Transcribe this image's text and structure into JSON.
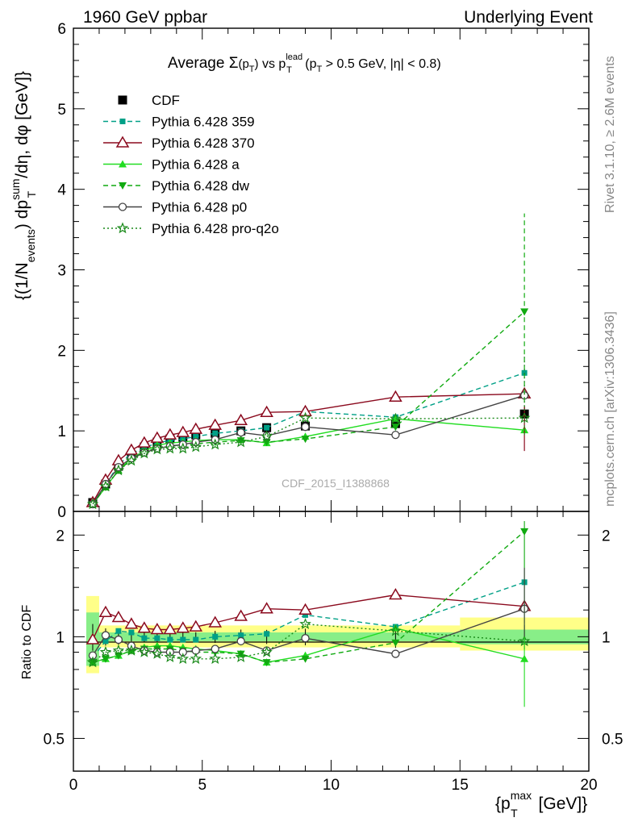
{
  "header": {
    "left": "1960 GeV ppbar",
    "right": "Underlying Event"
  },
  "side_labels": {
    "rivet": "Rivet 3.1.10, ≥ 2.6M events",
    "mcplots": "mcplots.cern.ch [arXiv:1306.3436]"
  },
  "watermark": "CDF_2015_I1388868",
  "chart_data": [
    {
      "type": "scatter",
      "title": "Average Σ(pT) vs pT^lead (pT > 0.5 GeV, |η| < 0.8)",
      "xlabel": "{pT^max [GeV]}",
      "ylabel": "{(1/N_events) dpT^sum/dη, dφ [GeV]}",
      "xlim": [
        0,
        20
      ],
      "ylim": [
        0,
        6
      ],
      "legend_position": "top-left",
      "x": [
        0.75,
        1.25,
        1.75,
        2.25,
        2.75,
        3.25,
        3.75,
        4.25,
        4.75,
        5.5,
        6.5,
        7.5,
        9.0,
        12.5,
        17.5
      ],
      "series": [
        {
          "name": "CDF",
          "color": "#000000",
          "marker": "square",
          "line": "none",
          "values": [
            0.11,
            0.34,
            0.56,
            0.69,
            0.8,
            0.86,
            0.9,
            0.92,
            0.95,
            0.97,
            1.0,
            1.04,
            1.06,
            1.09,
            1.21
          ],
          "errors": [
            0.01,
            0.02,
            0.03,
            0.03,
            0.03,
            0.03,
            0.03,
            0.03,
            0.03,
            0.04,
            0.05,
            0.05,
            0.06,
            0.08,
            0.1
          ]
        },
        {
          "name": "Pythia 6.428 359",
          "color": "#00a087",
          "marker": "square-small",
          "line": "dashed",
          "values": [
            0.1,
            0.33,
            0.58,
            0.72,
            0.79,
            0.85,
            0.88,
            0.9,
            0.93,
            0.97,
            1.0,
            1.04,
            1.24,
            1.17,
            1.72
          ]
        },
        {
          "name": "Pythia 6.428 370",
          "color": "#8b0a1e",
          "marker": "triangle-open",
          "line": "solid",
          "values": [
            0.11,
            0.39,
            0.63,
            0.76,
            0.85,
            0.91,
            0.95,
            0.98,
            1.02,
            1.07,
            1.13,
            1.23,
            1.24,
            1.42,
            1.46
          ]
        },
        {
          "name": "Pythia 6.428 a",
          "color": "#22dd22",
          "marker": "triangle",
          "line": "solid",
          "values": [
            0.09,
            0.3,
            0.51,
            0.66,
            0.75,
            0.82,
            0.85,
            0.86,
            0.88,
            0.89,
            0.89,
            0.85,
            0.93,
            1.15,
            1.01
          ]
        },
        {
          "name": "Pythia 6.428 dw",
          "color": "#11aa11",
          "marker": "triangle-down",
          "line": "dashed",
          "values": [
            0.09,
            0.3,
            0.51,
            0.64,
            0.74,
            0.79,
            0.82,
            0.82,
            0.84,
            0.86,
            0.88,
            0.86,
            0.9,
            1.05,
            2.48
          ]
        },
        {
          "name": "Pythia 6.428 p0",
          "color": "#444444",
          "marker": "circle-open",
          "line": "solid",
          "values": [
            0.09,
            0.34,
            0.55,
            0.66,
            0.73,
            0.78,
            0.81,
            0.83,
            0.86,
            0.89,
            0.98,
            0.94,
            1.05,
            0.95,
            1.44
          ]
        },
        {
          "name": "Pythia 6.428 pro-q2o",
          "color": "#1a8a1a",
          "marker": "star",
          "line": "dotted",
          "values": [
            0.09,
            0.31,
            0.51,
            0.63,
            0.72,
            0.77,
            0.78,
            0.78,
            0.8,
            0.83,
            0.86,
            0.93,
            1.16,
            1.15,
            1.16
          ]
        }
      ]
    },
    {
      "type": "scatter",
      "title": "",
      "xlabel": "{pT^max [GeV]}",
      "ylabel": "Ratio to CDF",
      "xlim": [
        0,
        20
      ],
      "ylim": [
        0.4,
        2.35
      ],
      "y_ticks": [
        "0.5",
        "1",
        "2"
      ],
      "x_ticks": [
        "0",
        "5",
        "10",
        "15",
        "20"
      ],
      "reference_line": 1,
      "bands": [
        {
          "x_range": [
            0.5,
            1.0
          ],
          "inner": [
            0.82,
            1.18
          ],
          "outer": [
            0.78,
            1.32
          ]
        },
        {
          "x_range": [
            1.0,
            15.0
          ],
          "inner": [
            0.97,
            1.03
          ],
          "outer": [
            0.93,
            1.08
          ]
        },
        {
          "x_range": [
            15.0,
            20.0
          ],
          "inner": [
            0.95,
            1.05
          ],
          "outer": [
            0.91,
            1.14
          ]
        }
      ],
      "x": [
        0.75,
        1.25,
        1.75,
        2.25,
        2.75,
        3.25,
        3.75,
        4.25,
        4.75,
        5.5,
        6.5,
        7.5,
        9.0,
        12.5,
        17.5
      ],
      "series": [
        {
          "name": "Pythia 6.428 359",
          "values": [
            0.87,
            0.97,
            1.04,
            1.03,
            0.99,
            0.99,
            0.98,
            0.98,
            0.98,
            1.0,
            1.01,
            1.02,
            1.16,
            1.07,
            1.45
          ]
        },
        {
          "name": "Pythia 6.428 370",
          "values": [
            0.98,
            1.18,
            1.14,
            1.09,
            1.06,
            1.05,
            1.05,
            1.06,
            1.07,
            1.1,
            1.15,
            1.21,
            1.2,
            1.33,
            1.23
          ]
        },
        {
          "name": "Pythia 6.428 a",
          "values": [
            0.84,
            0.86,
            0.88,
            0.91,
            0.93,
            0.94,
            0.94,
            0.93,
            0.92,
            0.91,
            0.89,
            0.84,
            0.88,
            1.06,
            0.86
          ]
        },
        {
          "name": "Pythia 6.428 dw",
          "values": [
            0.84,
            0.86,
            0.88,
            0.91,
            0.92,
            0.92,
            0.92,
            0.91,
            0.9,
            0.9,
            0.89,
            0.84,
            0.86,
            0.96,
            2.05
          ]
        },
        {
          "name": "Pythia 6.428 p0",
          "values": [
            0.88,
            1.01,
            0.98,
            0.94,
            0.91,
            0.9,
            0.9,
            0.9,
            0.91,
            0.92,
            0.97,
            0.91,
            0.99,
            0.89,
            1.21
          ]
        },
        {
          "name": "Pythia 6.428 pro-q2o",
          "values": [
            0.84,
            0.9,
            0.91,
            0.91,
            0.9,
            0.89,
            0.87,
            0.86,
            0.86,
            0.86,
            0.87,
            0.9,
            1.09,
            1.04,
            0.97
          ]
        }
      ]
    }
  ]
}
